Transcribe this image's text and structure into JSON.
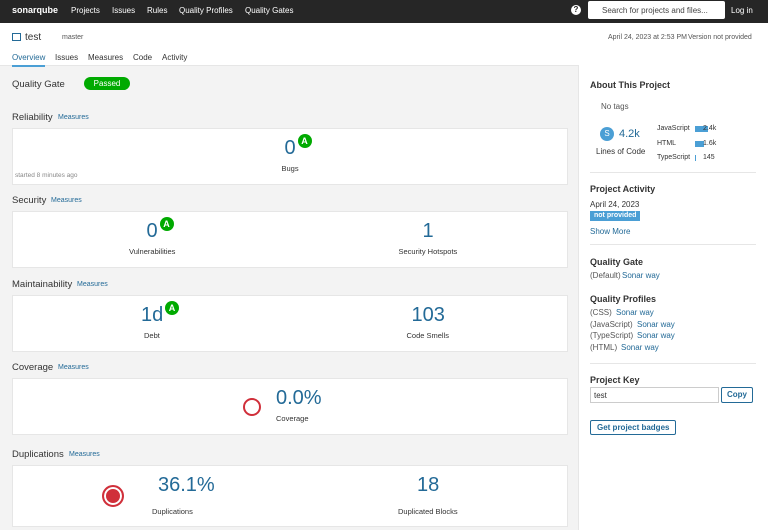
{
  "nav": {
    "logo": "sonarqube",
    "links": [
      "Projects",
      "Issues",
      "Rules",
      "Quality Profiles",
      "Quality Gates"
    ],
    "help": "?",
    "search_placeholder": "Search for projects and files...",
    "login": "Log in"
  },
  "project": {
    "name": "test",
    "branch": "master",
    "date": "April 24, 2023 at 2:53 PM",
    "version": "Version not provided",
    "tabs": [
      "Overview",
      "Issues",
      "Measures",
      "Code",
      "Activity"
    ]
  },
  "quality_gate": {
    "label": "Quality Gate",
    "status": "Passed"
  },
  "sections": [
    {
      "title": "Reliability",
      "link": "Measures",
      "metrics": [
        {
          "value": 0,
          "label": "Bugs",
          "rating": "A"
        }
      ],
      "note": "started 8 minutes ago"
    },
    {
      "title": "Security",
      "link": "Measures",
      "metrics": [
        {
          "value": 0,
          "label": "Vulnerabilities",
          "rating": "A"
        },
        {
          "value": 1,
          "label": "Security Hotspots"
        }
      ]
    },
    {
      "title": "Maintainability",
      "link": "Measures",
      "metrics": [
        {
          "value": "1d",
          "label": "Debt",
          "rating": "A"
        },
        {
          "value": 103,
          "label": "Code Smells"
        }
      ]
    },
    {
      "title": "Coverage",
      "link": "Measures",
      "metrics": [
        {
          "value": "0.0%",
          "label": "Coverage"
        }
      ]
    },
    {
      "title": "Duplications",
      "link": "Measures",
      "metrics": [
        {
          "value": "36.1%",
          "label": "Duplications"
        },
        {
          "value": 18,
          "label": "Duplicated Blocks"
        }
      ]
    }
  ],
  "sidebar": {
    "about": {
      "title": "About This Project",
      "tags": "No tags",
      "loc_icon": "S",
      "loc": "4.2k",
      "loc_label": "Lines of Code",
      "languages": [
        {
          "name": "JavaScript",
          "value": 2400,
          "label": "2.4k"
        },
        {
          "name": "HTML",
          "value": 1600,
          "label": "1.6k"
        },
        {
          "name": "TypeScript",
          "value": 145
        }
      ]
    },
    "activity": {
      "title": "Project Activity",
      "date": "April 24, 2023",
      "badge": "not provided",
      "more": "Show More"
    },
    "quality_gate": {
      "title": "Quality Gate",
      "default": "(Default)",
      "name": "Sonar way"
    },
    "profiles": {
      "title": "Quality Profiles",
      "items": [
        {
          "lang": "(CSS)",
          "name": "Sonar way"
        },
        {
          "lang": "(JavaScript)",
          "name": "Sonar way"
        },
        {
          "lang": "(TypeScript)",
          "name": "Sonar way"
        },
        {
          "lang": "(HTML)",
          "name": "Sonar way"
        }
      ]
    },
    "key": {
      "title": "Project Key",
      "value": "test",
      "copy": "Copy"
    },
    "badges": "Get project badges"
  }
}
